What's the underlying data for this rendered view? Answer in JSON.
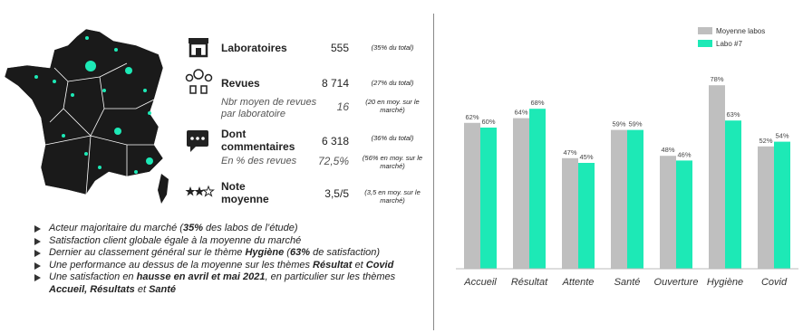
{
  "stats": [
    {
      "label": "Laboratoires",
      "value": "555",
      "note": "(35% du total)"
    },
    {
      "label": "Revues",
      "value": "8 714",
      "note": "(27% du total)",
      "sub_label": "Nbr moyen de revues par laboratoire",
      "sub_value": "16",
      "sub_note": "(20 en moy. sur le marché)"
    },
    {
      "label": "Dont commentaires",
      "value": "6 318",
      "note": "(36% du total)",
      "sub_label": "En % des revues",
      "sub_value": "72,5%",
      "sub_note": "(56% en moy. sur le marché)"
    },
    {
      "label": "Note moyenne",
      "value": "3,5/5",
      "note": "(3,5 en moy. sur le marché)"
    }
  ],
  "bullets": [
    [
      {
        "text": "Acteur majoritaire du marché ("
      },
      {
        "text": "35%",
        "bold": true
      },
      {
        "text": " des labos de l’étude)"
      }
    ],
    [
      {
        "text": "Satisfaction client globale égale à la moyenne du marché"
      }
    ],
    [
      {
        "text": "Dernier au classement général sur le thème "
      },
      {
        "text": "Hygiène",
        "bold": true
      },
      {
        "text": " ("
      },
      {
        "text": "63%",
        "bold": true
      },
      {
        "text": " de satisfaction)"
      }
    ],
    [
      {
        "text": "Une performance au dessus de la moyenne sur les thèmes "
      },
      {
        "text": "Résultat",
        "bold": true
      },
      {
        "text": " et "
      },
      {
        "text": "Covid",
        "bold": true
      }
    ],
    [
      {
        "text": "Une satisfaction en "
      },
      {
        "text": "hausse en avril et mai 2021",
        "bold": true
      },
      {
        "text": ", en particulier sur les thèmes "
      },
      {
        "text": "Accueil, Résultats",
        "bold": true
      },
      {
        "text": " et "
      },
      {
        "text": "Santé",
        "bold": true
      }
    ]
  ],
  "chart_data": {
    "type": "bar",
    "categories": [
      "Accueil",
      "Résultat",
      "Attente",
      "Santé",
      "Ouverture",
      "Hygiène",
      "Covid"
    ],
    "series": [
      {
        "name": "Moyenne labos",
        "color": "#bfbfbf",
        "values": [
          62,
          64,
          47,
          59,
          48,
          78,
          52
        ],
        "value_labels": [
          "62%",
          "64%",
          "47%",
          "59%",
          "48%",
          "78%",
          "52%"
        ]
      },
      {
        "name": "Labo #7",
        "color": "#1de9b6",
        "values": [
          60,
          68,
          45,
          59,
          46,
          63,
          54
        ],
        "value_labels": [
          "60%",
          "68%",
          "45%",
          "59%",
          "46%",
          "63%",
          "54%"
        ]
      }
    ],
    "ylim": [
      0,
      80
    ],
    "legend": "top-right"
  }
}
